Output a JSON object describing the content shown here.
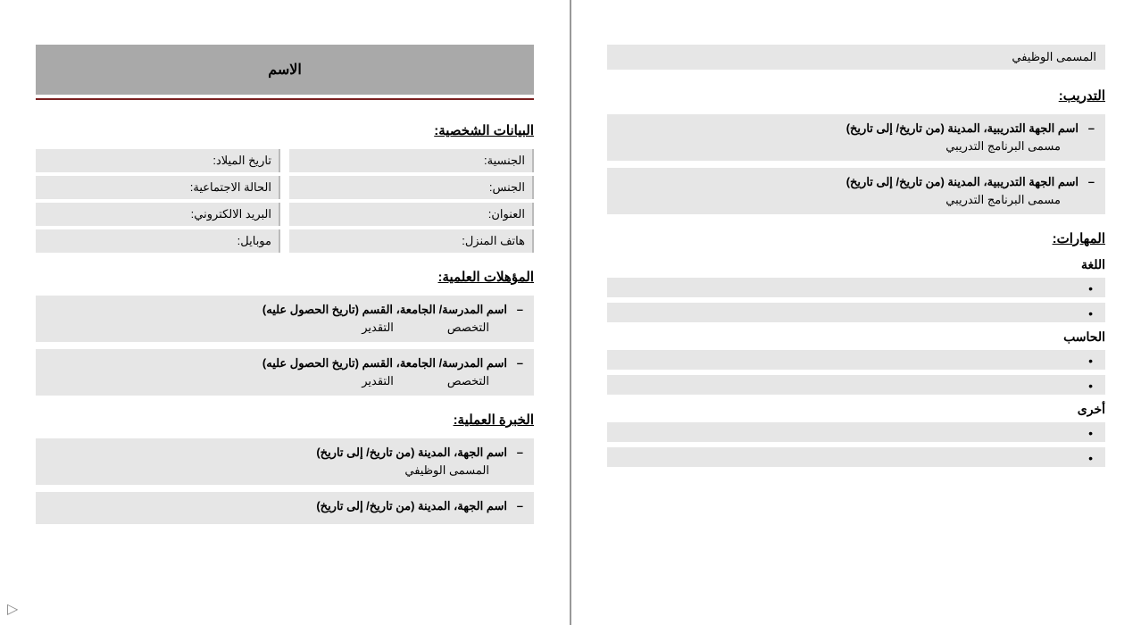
{
  "colors": {
    "title_bg": "#a9a9a9",
    "underline": "#7a1f1f",
    "cell_bg": "#e6e6e6",
    "border": "#bbbbbb",
    "text": "#000000"
  },
  "page1": {
    "title": "الاسم",
    "personal": {
      "heading": "البيانات الشخصية:",
      "rows": [
        {
          "right": "الجنسية:",
          "left": "تاريخ الميلاد:"
        },
        {
          "right": "الجنس:",
          "left": "الحالة الاجتماعية:"
        },
        {
          "right": "العنوان:",
          "left": "البريد الالكتروني:"
        },
        {
          "right": "هاتف المنزل:",
          "left": "موبايل:"
        }
      ]
    },
    "education": {
      "heading": "المؤهلات العلمية:",
      "entries": [
        {
          "title": "اسم المدرسة/ الجامعة، القسم  (تاريخ الحصول عليه)",
          "field1": "التخصص",
          "field2": "التقدير"
        },
        {
          "title": "اسم المدرسة/ الجامعة، القسم  (تاريخ الحصول عليه)",
          "field1": "التخصص",
          "field2": "التقدير"
        }
      ]
    },
    "experience": {
      "heading": "الخبرة العملية:",
      "entries": [
        {
          "title": "اسم الجهة، المدينة  (من تاريخ/ إلى تاريخ)",
          "sub": "المسمى الوظيفي"
        },
        {
          "title": "اسم الجهة، المدينة  (من تاريخ/ إلى تاريخ)"
        }
      ]
    }
  },
  "page2": {
    "job_title_label": "المسمى الوظيفي",
    "training": {
      "heading": "التدريب:",
      "entries": [
        {
          "title": "اسم الجهة التدريبية، المدينة  (من تاريخ/ إلى تاريخ)",
          "sub": "مسمى البرنامج التدريبي"
        },
        {
          "title": "اسم الجهة التدريبية، المدينة  (من تاريخ/ إلى تاريخ)",
          "sub": "مسمى البرنامج التدريبي"
        }
      ]
    },
    "skills": {
      "heading": "المهارات:",
      "language_label": "اللغة",
      "computer_label": "الحاسب",
      "other_label": "أخرى",
      "language_items": [
        "",
        ""
      ],
      "computer_items": [
        "",
        ""
      ],
      "other_items": [
        "",
        ""
      ]
    }
  }
}
